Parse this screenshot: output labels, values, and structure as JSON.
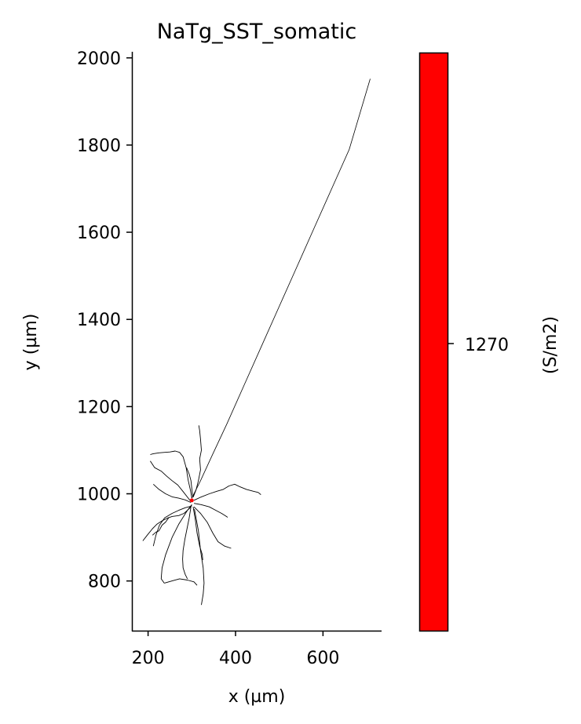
{
  "chart_data": {
    "type": "scatter",
    "title": "NaTg_SST_somatic",
    "xlabel": "x (µm)",
    "ylabel": "y (µm)",
    "xlim": [
      163,
      734
    ],
    "ylim": [
      686,
      2014
    ],
    "xticks": [
      200,
      400,
      600
    ],
    "yticks": [
      800,
      1000,
      1200,
      1400,
      1600,
      1800,
      2000
    ],
    "grid": false,
    "axon": {
      "x": [
        300,
        320,
        345,
        380,
        420,
        460,
        500,
        540,
        580,
        620,
        660,
        708
      ],
      "y": [
        990,
        1030,
        1085,
        1160,
        1250,
        1340,
        1430,
        1520,
        1610,
        1700,
        1790,
        1952
      ]
    },
    "dendrites": [
      {
        "x": [
          300,
          296,
          290,
          282,
          270,
          255,
          244,
          232,
          220,
          210,
          198,
          188
        ],
        "y": [
          975,
          968,
          962,
          955,
          950,
          948,
          944,
          938,
          930,
          920,
          905,
          892
        ]
      },
      {
        "x": [
          298,
          292,
          280,
          268,
          255,
          243,
          230,
          215,
          205
        ],
        "y": [
          982,
          990,
          1005,
          1020,
          1030,
          1040,
          1052,
          1060,
          1075
        ]
      },
      {
        "x": [
          300,
          297,
          292,
          287,
          280,
          272,
          262,
          250,
          238,
          225,
          212,
          205
        ],
        "y": [
          990,
          1008,
          1030,
          1060,
          1085,
          1095,
          1098,
          1096,
          1095,
          1094,
          1092,
          1090
        ]
      },
      {
        "x": [
          303,
          310,
          315,
          320,
          318,
          322,
          320,
          318,
          316
        ],
        "y": [
          992,
          1010,
          1030,
          1055,
          1080,
          1100,
          1125,
          1145,
          1157
        ]
      },
      {
        "x": [
          305,
          320,
          340,
          358,
          372,
          385,
          398,
          410,
          425,
          440,
          452,
          458
        ],
        "y": [
          985,
          992,
          1000,
          1006,
          1010,
          1018,
          1022,
          1016,
          1010,
          1006,
          1003,
          998
        ]
      },
      {
        "x": [
          305,
          322,
          340,
          355,
          368,
          376,
          382
        ],
        "y": [
          978,
          975,
          970,
          962,
          955,
          950,
          946
        ]
      },
      {
        "x": [
          303,
          308,
          312,
          318,
          324,
          325
        ],
        "y": [
          970,
          940,
          910,
          880,
          860,
          848
        ]
      },
      {
        "x": [
          298,
          294,
          289,
          284,
          280,
          279,
          280,
          285,
          290
        ],
        "y": [
          970,
          945,
          920,
          895,
          870,
          850,
          830,
          815,
          805
        ]
      },
      {
        "x": [
          300,
          290,
          270,
          255,
          240,
          232,
          230,
          237
        ],
        "y": [
          975,
          962,
          930,
          900,
          860,
          830,
          805,
          795
        ]
      },
      {
        "x": [
          237,
          255,
          272,
          290,
          305,
          312
        ],
        "y": [
          795,
          800,
          805,
          802,
          798,
          790
        ]
      },
      {
        "x": [
          306,
          315,
          320,
          326,
          328,
          326,
          322
        ],
        "y": [
          965,
          915,
          870,
          830,
          795,
          770,
          745
        ]
      },
      {
        "x": [
          300,
          285,
          270,
          255,
          238,
          226,
          218,
          212
        ],
        "y": [
          972,
          968,
          962,
          955,
          945,
          928,
          905,
          880
        ]
      },
      {
        "x": [
          298,
          285,
          270,
          255,
          240,
          225,
          212
        ],
        "y": [
          980,
          986,
          990,
          993,
          1000,
          1010,
          1022
        ]
      },
      {
        "x": [
          305,
          320,
          335,
          348,
          360,
          375,
          390
        ],
        "y": [
          970,
          955,
          935,
          910,
          890,
          880,
          875
        ]
      },
      {
        "x": [
          302,
          300,
          298,
          294,
          288
        ],
        "y": [
          995,
          1012,
          1030,
          1045,
          1060
        ]
      },
      {
        "x": [
          248,
          240,
          232,
          225,
          218,
          210
        ],
        "y": [
          946,
          935,
          928,
          915,
          912,
          905
        ]
      }
    ],
    "soma": {
      "x": 300,
      "y": 985
    },
    "colorbar": {
      "label": "(S/m2)",
      "tick_labels": [
        "1270"
      ],
      "color": "#ff0000"
    },
    "colors": {
      "morphology": "#000000",
      "soma": "#ff0000"
    }
  }
}
